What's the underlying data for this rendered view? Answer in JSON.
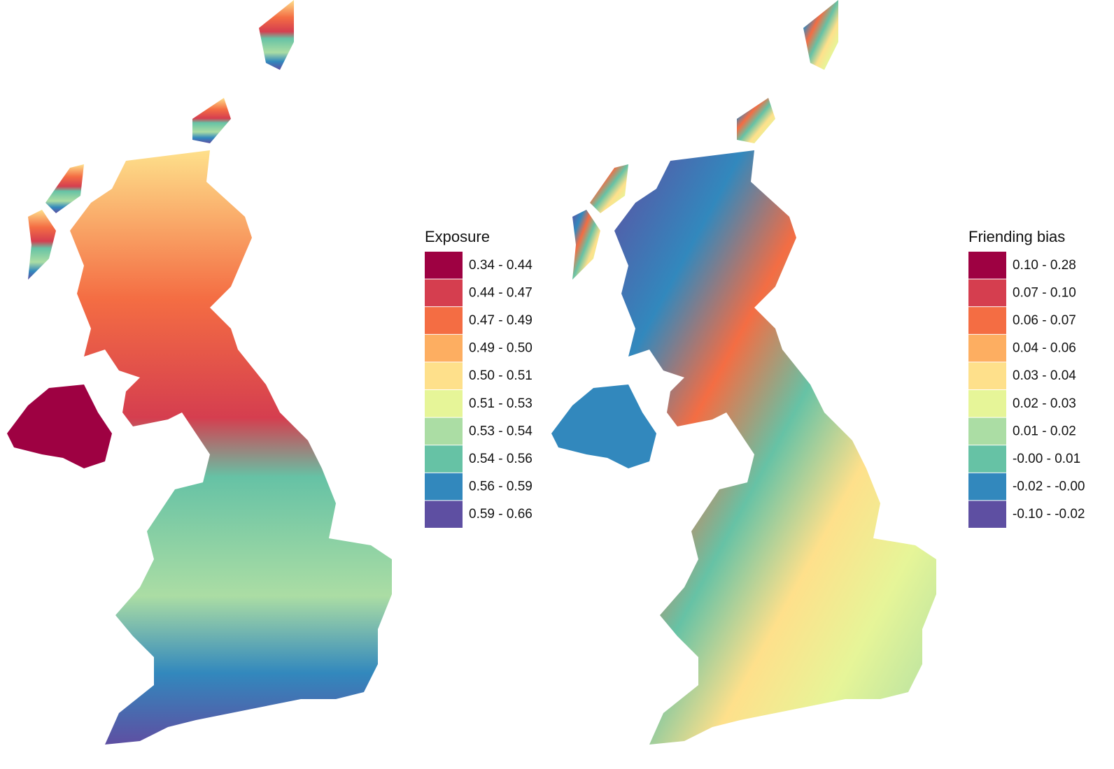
{
  "maps": [
    {
      "legend": {
        "title": "Exposure",
        "items": [
          {
            "label": "0.34 - 0.44",
            "color": "#9e0142"
          },
          {
            "label": "0.44 - 0.47",
            "color": "#d53e4f"
          },
          {
            "label": "0.47 - 0.49",
            "color": "#f46d43"
          },
          {
            "label": "0.49 - 0.50",
            "color": "#fdae61"
          },
          {
            "label": "0.50 - 0.51",
            "color": "#fee08b"
          },
          {
            "label": "0.51 - 0.53",
            "color": "#e6f598"
          },
          {
            "label": "0.53 - 0.54",
            "color": "#abdda4"
          },
          {
            "label": "0.54 - 0.56",
            "color": "#66c2a5"
          },
          {
            "label": "0.56 - 0.59",
            "color": "#3288bd"
          },
          {
            "label": "0.59 - 0.66",
            "color": "#5e4fa2"
          }
        ]
      }
    },
    {
      "legend": {
        "title": "Friending bias",
        "items": [
          {
            "label": "0.10 - 0.28",
            "color": "#9e0142"
          },
          {
            "label": "0.07 - 0.10",
            "color": "#d53e4f"
          },
          {
            "label": "0.06 - 0.07",
            "color": "#f46d43"
          },
          {
            "label": "0.04 - 0.06",
            "color": "#fdae61"
          },
          {
            "label": "0.03 - 0.04",
            "color": "#fee08b"
          },
          {
            "label": "0.02 - 0.03",
            "color": "#e6f598"
          },
          {
            "label": "0.01 - 0.02",
            "color": "#abdda4"
          },
          {
            "label": "-0.00 - 0.01",
            "color": "#66c2a5"
          },
          {
            "label": "-0.02 - -0.00",
            "color": "#3288bd"
          },
          {
            "label": "-0.10 - -0.02",
            "color": "#5e4fa2"
          }
        ]
      }
    }
  ]
}
